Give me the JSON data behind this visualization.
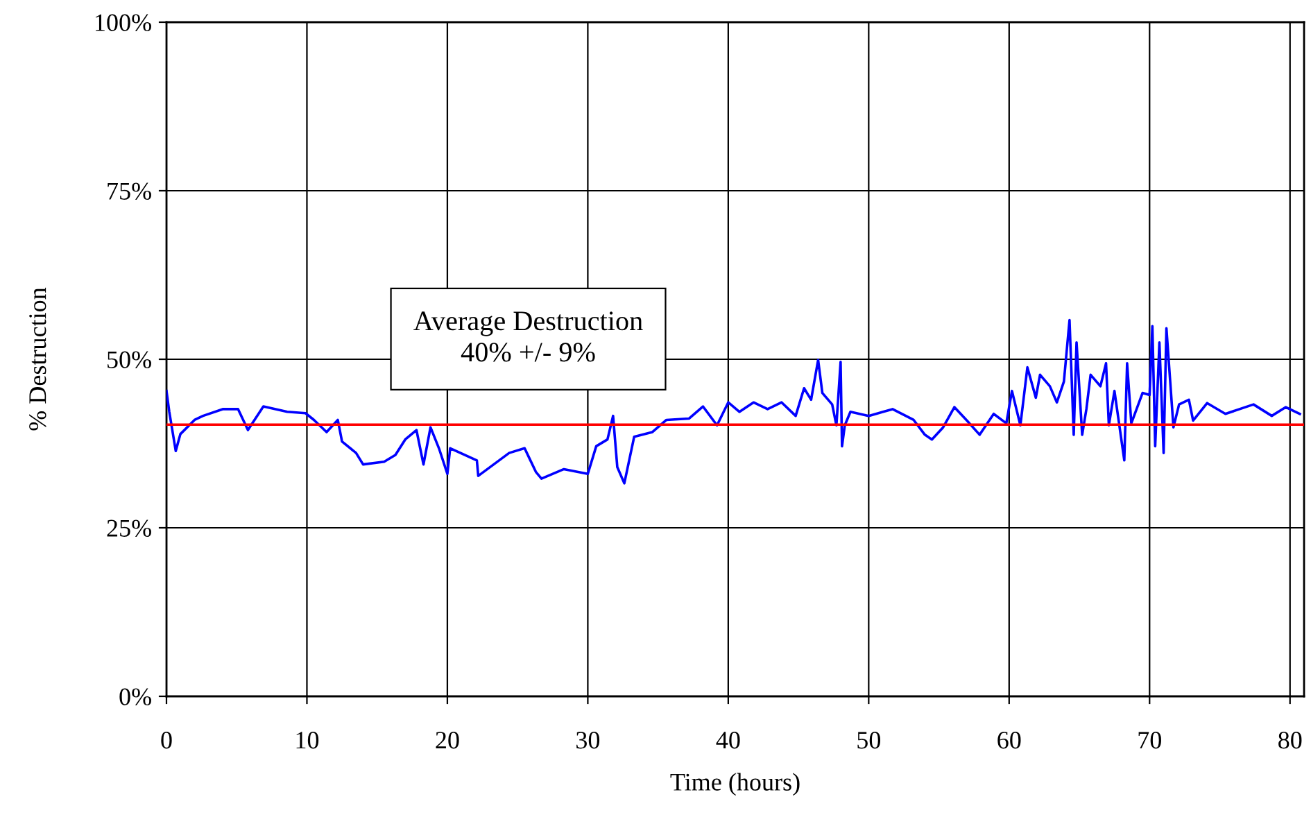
{
  "chart_data": {
    "type": "line",
    "xlabel": "Time (hours)",
    "ylabel": "% Destruction",
    "xlim": [
      0,
      81
    ],
    "xticks": [
      0,
      10,
      20,
      30,
      40,
      50,
      60,
      70,
      80
    ],
    "ylim": [
      0,
      100
    ],
    "yticks": [
      {
        "value": 0,
        "label": "0%"
      },
      {
        "value": 25,
        "label": "25%"
      },
      {
        "value": 50,
        "label": "50%"
      },
      {
        "value": 75,
        "label": "75%"
      },
      {
        "value": 100,
        "label": "100%"
      }
    ],
    "grid": true,
    "marker": "none",
    "line_style": "solid",
    "series": [
      {
        "color": "#0000ff",
        "x": [
          0,
          0.2,
          0.66,
          0.99,
          2.0,
          2.6,
          4.0,
          5.1,
          5.8,
          6.9,
          8.6,
          9.9,
          10.5,
          11.4,
          12.2,
          12.5,
          13.5,
          14.0,
          15.5,
          16.3,
          17.0,
          17.8,
          18.3,
          18.8,
          19.4,
          20.0,
          20.2,
          22.1,
          22.2,
          24.4,
          25.5,
          26.3,
          26.7,
          28.3,
          30.0,
          30.6,
          31.4,
          31.8,
          32.1,
          32.6,
          33.3,
          34.6,
          35.6,
          37.2,
          38.2,
          39.2,
          40.0,
          40.8,
          41.8,
          42.8,
          43.8,
          44.8,
          45.4,
          45.9,
          46.4,
          46.7,
          47.4,
          47.7,
          48.0,
          48.1,
          48.3,
          48.7,
          50.0,
          51.7,
          53.2,
          54.0,
          54.5,
          55.3,
          56.1,
          57.0,
          57.9,
          58.9,
          59.8,
          60.2,
          60.8,
          61.3,
          61.9,
          62.2,
          62.9,
          63.4,
          63.9,
          64.3,
          64.6,
          64.8,
          65.2,
          65.5,
          65.8,
          66.5,
          66.9,
          67.1,
          67.5,
          68.2,
          68.4,
          68.7,
          69.5,
          70.0,
          70.2,
          70.4,
          70.7,
          71.0,
          71.2,
          71.7,
          72.1,
          72.8,
          73.1,
          74.1,
          75.4,
          77.4,
          78.7,
          79.7,
          80.7
        ],
        "values": [
          45.3,
          42.2,
          36.4,
          38.9,
          41.0,
          41.6,
          42.6,
          42.6,
          39.5,
          43.0,
          42.2,
          42.0,
          41.0,
          39.2,
          41.0,
          37.8,
          36.1,
          34.4,
          34.8,
          35.8,
          38.1,
          39.5,
          34.4,
          39.9,
          36.8,
          33.0,
          36.8,
          35.0,
          32.7,
          36.1,
          36.8,
          33.3,
          32.3,
          33.7,
          33.0,
          37.1,
          38.1,
          41.6,
          34.0,
          31.6,
          38.5,
          39.2,
          41.0,
          41.2,
          43.0,
          40.2,
          43.6,
          42.2,
          43.6,
          42.6,
          43.6,
          41.6,
          45.7,
          44.0,
          49.9,
          45.0,
          43.3,
          40.2,
          49.6,
          37.1,
          40.2,
          42.2,
          41.6,
          42.6,
          41.0,
          38.8,
          38.1,
          39.9,
          42.9,
          40.9,
          38.8,
          41.9,
          40.5,
          45.3,
          40.2,
          48.8,
          44.3,
          47.7,
          46.0,
          43.6,
          46.7,
          55.8,
          38.8,
          52.5,
          38.8,
          42.6,
          47.7,
          46.0,
          49.4,
          40.2,
          45.3,
          35.0,
          49.4,
          40.5,
          45.0,
          44.7,
          54.9,
          37.1,
          52.5,
          36.1,
          54.6,
          39.9,
          43.3,
          44.0,
          40.9,
          43.5,
          41.9,
          43.3,
          41.6,
          42.9,
          41.9
        ]
      }
    ],
    "ref_lines": [
      {
        "axis": "y",
        "value": 40.3,
        "color": "#ff0000"
      }
    ],
    "annotations": [
      "Average Destruction\n40% +/- 9%"
    ]
  }
}
